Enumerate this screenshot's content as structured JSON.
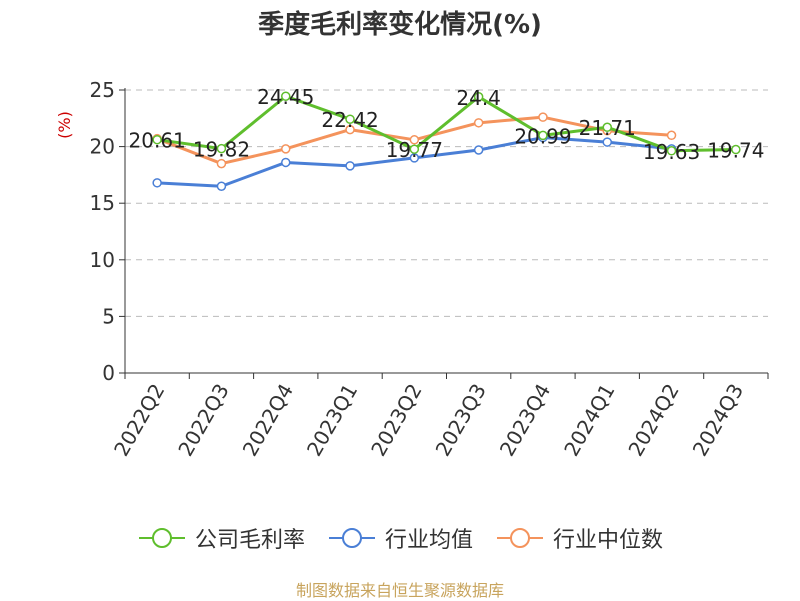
{
  "chart_data": {
    "type": "line",
    "title": "季度毛利率变化情况(%)",
    "ylabel": "(%)",
    "categories": [
      "2022Q2",
      "2022Q3",
      "2022Q4",
      "2023Q1",
      "2023Q2",
      "2023Q3",
      "2023Q4",
      "2024Q1",
      "2024Q2",
      "2024Q3"
    ],
    "ylim": [
      0,
      25
    ],
    "yticks": [
      0,
      5,
      10,
      15,
      20,
      25
    ],
    "grid": "horizontal dashed",
    "legend_position": "bottom",
    "series": [
      {
        "name": "公司毛利率",
        "color": "#5fbe2d",
        "values": [
          20.61,
          19.82,
          24.45,
          22.42,
          19.77,
          24.4,
          20.99,
          21.71,
          19.63,
          19.74
        ],
        "labels": [
          "20.61",
          "19.82",
          "24.45",
          "22.42",
          "19.77",
          "24.4",
          "20.99",
          "21.71",
          "19.63",
          "19.74"
        ]
      },
      {
        "name": "行业均值",
        "color": "#4a7fd6",
        "values": [
          16.8,
          16.5,
          18.6,
          18.3,
          19.0,
          19.7,
          20.8,
          20.4,
          19.8,
          null
        ]
      },
      {
        "name": "行业中位数",
        "color": "#f4935c",
        "values": [
          20.7,
          18.5,
          19.8,
          21.5,
          20.6,
          22.1,
          22.6,
          21.4,
          21.0,
          null
        ]
      }
    ]
  },
  "source": "制图数据来自恒生聚源数据库"
}
